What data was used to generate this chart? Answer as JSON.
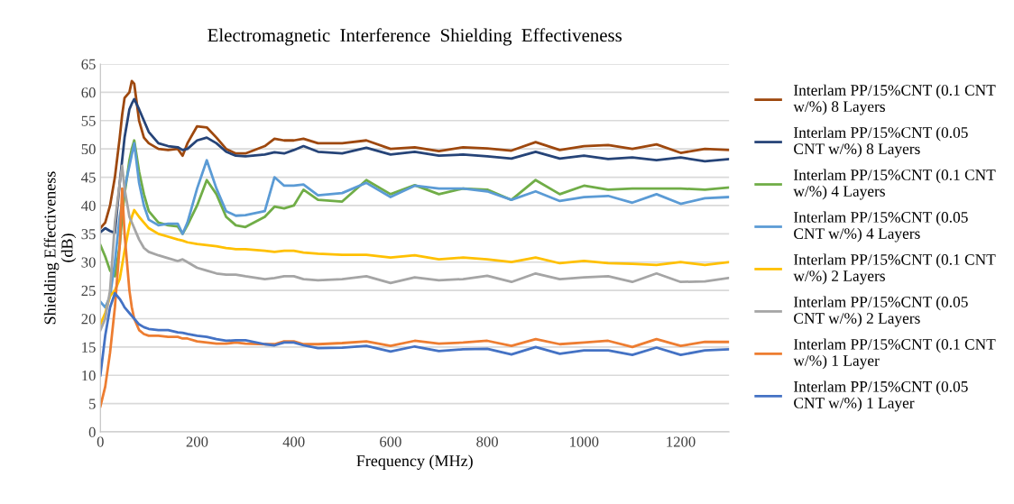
{
  "chart_data": {
    "type": "line",
    "title": "Electromagnetic  Interference  Shielding  Effectiveness",
    "xlabel": "Frequency (MHz)",
    "ylabel": "Shielding Effectiveness\n(dB)",
    "x": [
      0,
      10,
      20,
      30,
      40,
      45,
      50,
      60,
      65,
      70,
      80,
      90,
      100,
      120,
      140,
      160,
      170,
      180,
      200,
      220,
      240,
      260,
      280,
      300,
      340,
      360,
      380,
      400,
      420,
      450,
      500,
      550,
      600,
      650,
      700,
      750,
      800,
      850,
      900,
      950,
      1000,
      1050,
      1100,
      1150,
      1200,
      1250,
      1300
    ],
    "series": [
      {
        "name": "Interlam PP/15%CNT (0.1 CNT w/%) 8 Layers",
        "color": "#9e480e",
        "values": [
          36,
          37,
          40,
          45,
          52,
          56,
          59,
          60,
          62,
          61.5,
          55,
          52,
          51,
          50,
          49.8,
          50,
          48.8,
          51,
          54,
          53.8,
          52,
          50,
          49.2,
          49.2,
          50.5,
          51.8,
          51.5,
          51.5,
          51.8,
          51,
          51,
          51.5,
          50,
          50.3,
          49.6,
          50.3,
          50.1,
          49.7,
          51.2,
          49.8,
          50.5,
          50.7,
          50,
          50.8,
          49.3,
          50,
          49.8
        ]
      },
      {
        "name": "Interlam PP/15%CNT (0.05 CNT w/%) 8 Layers",
        "color": "#264478",
        "values": [
          35.3,
          36,
          35.5,
          35.2,
          44,
          48,
          52,
          57,
          58,
          58.8,
          57,
          55,
          53,
          51,
          50.5,
          50.3,
          49.8,
          50,
          51.5,
          52,
          51,
          49.5,
          48.8,
          48.7,
          49,
          49.4,
          49.2,
          49.8,
          50.5,
          49.5,
          49.2,
          50.2,
          49,
          49.5,
          48.8,
          49,
          48.7,
          48.3,
          49.5,
          48.3,
          48.8,
          48.2,
          48.5,
          48,
          48.5,
          47.8,
          48.2
        ]
      },
      {
        "name": "Interlam PP/15%CNT (0.1 CNT w/%) 4 Layers",
        "color": "#70ad47",
        "values": [
          33,
          31,
          28.5,
          27.5,
          33,
          38,
          42,
          48,
          50,
          51.5,
          46,
          42,
          39,
          37,
          36.5,
          36.3,
          35,
          36.5,
          40,
          44.5,
          42,
          38,
          36.5,
          36.2,
          38,
          39.8,
          39.5,
          40,
          42.8,
          41,
          40.7,
          44.5,
          42,
          43.6,
          42,
          43,
          42.8,
          41,
          44.5,
          42,
          43.5,
          42.8,
          43,
          43,
          43,
          42.8,
          43.2
        ]
      },
      {
        "name": "Interlam PP/15%CNT (0.05 CNT w/%) 4 Layers",
        "color": "#5b9bd5",
        "values": [
          23,
          22,
          24,
          30,
          38,
          40.5,
          43,
          47,
          49,
          51,
          44,
          40,
          37.5,
          36.5,
          36.8,
          36.8,
          35,
          37,
          43,
          48,
          43,
          39,
          38.2,
          38.3,
          39,
          45,
          43.5,
          43.5,
          43.7,
          41.8,
          42.2,
          44,
          41.5,
          43.5,
          43,
          43,
          42.5,
          41,
          42.5,
          40.8,
          41.5,
          41.7,
          40.5,
          42,
          40.3,
          41.3,
          41.5
        ]
      },
      {
        "name": "Interlam PP/15%CNT (0.1 CNT w/%) 2 Layers",
        "color": "#ffc000",
        "values": [
          19,
          21,
          24,
          25,
          27,
          29.5,
          32,
          36.5,
          38,
          39.2,
          38,
          37,
          36,
          35,
          34.5,
          34,
          33.8,
          33.5,
          33.2,
          33,
          32.8,
          32.5,
          32.3,
          32.3,
          32,
          31.8,
          32,
          32,
          31.7,
          31.5,
          31.3,
          31.3,
          30.8,
          31.2,
          30.5,
          30.8,
          30.5,
          30,
          30.8,
          29.8,
          30.2,
          29.8,
          29.7,
          29.5,
          30,
          29.5,
          30
        ]
      },
      {
        "name": "Interlam PP/15%CNT (0.05 CNT w/%) 2 Layers",
        "color": "#a5a5a5",
        "values": [
          18,
          20,
          25,
          37,
          44,
          47,
          43,
          38,
          37,
          36,
          34,
          32.5,
          31.8,
          31.2,
          30.7,
          30.2,
          30.5,
          30,
          29,
          28.5,
          28,
          27.8,
          27.8,
          27.5,
          27,
          27.2,
          27.5,
          27.5,
          27,
          26.8,
          27,
          27.5,
          26.3,
          27.3,
          26.8,
          27,
          27.6,
          26.5,
          28,
          27,
          27.3,
          27.5,
          26.5,
          28,
          26.5,
          26.6,
          27.2
        ]
      },
      {
        "name": "Interlam PP/15%CNT (0.1 CNT w/%) 1 Layer",
        "color": "#ed7d31",
        "values": [
          4.5,
          8,
          14,
          22,
          33,
          43,
          35,
          25,
          22,
          20,
          18,
          17.3,
          17,
          17,
          16.8,
          16.8,
          16.5,
          16.5,
          16,
          15.8,
          15.6,
          15.6,
          15.8,
          15.6,
          15.5,
          15.5,
          16,
          16,
          15.5,
          15.5,
          15.7,
          16,
          15.2,
          16.1,
          15.6,
          15.8,
          16.1,
          15.2,
          16.4,
          15.5,
          15.8,
          16.1,
          15,
          16.4,
          15.2,
          15.9,
          15.9
        ]
      },
      {
        "name": "Interlam PP/15%CNT (0.05 CNT w/%) 1 Layer",
        "color": "#4472c4",
        "values": [
          10,
          17,
          22,
          24.5,
          23.5,
          22.8,
          22,
          21,
          20.5,
          20,
          19,
          18.5,
          18.2,
          18,
          18,
          17.6,
          17.5,
          17.3,
          17,
          16.8,
          16.4,
          16.1,
          16.2,
          16.2,
          15.5,
          15.3,
          15.8,
          15.8,
          15.3,
          14.8,
          14.9,
          15.2,
          14.2,
          15.1,
          14.3,
          14.6,
          14.7,
          13.7,
          15,
          13.8,
          14.4,
          14.4,
          13.6,
          14.9,
          13.6,
          14.4,
          14.6
        ]
      }
    ],
    "xlim": [
      0,
      1300
    ],
    "xticks": [
      0,
      200,
      400,
      600,
      800,
      1000,
      1200
    ],
    "ylim": [
      0,
      65
    ],
    "yticks": [
      0,
      5,
      10,
      15,
      20,
      25,
      30,
      35,
      40,
      45,
      50,
      55,
      60,
      65
    ],
    "grid": "y",
    "legend": "right",
    "marker": "none",
    "line_style": "solid"
  }
}
